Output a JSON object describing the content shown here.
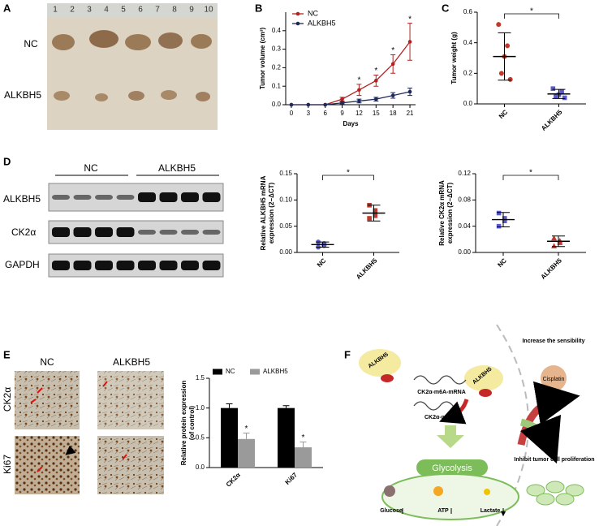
{
  "panel_labels": [
    "A",
    "B",
    "C",
    "D",
    "E",
    "F"
  ],
  "panel_a": {
    "ruler_labels": [
      "1",
      "2",
      "3",
      "4",
      "5",
      "6",
      "7",
      "8",
      "9",
      "10"
    ],
    "row_labels": [
      "NC",
      "ALKBH5"
    ]
  },
  "panel_d_blot": {
    "column_labels": [
      "NC",
      "ALKBH5"
    ],
    "row_labels": [
      "ALKBH5",
      "CK2α",
      "GAPDH"
    ]
  },
  "panel_e_images": {
    "column_labels": [
      "NC",
      "ALKBH5"
    ],
    "row_labels": [
      "CK2α",
      "Ki67"
    ]
  },
  "panel_f": {
    "enzyme": "ALKBH5",
    "enzyme_free": "ALKBH5",
    "methylated_mrna": "CK2α-m6A-mRNA",
    "mrna": "CK2α-mRNA",
    "pathway": "Glycolysis",
    "metabolites": [
      "Glucose",
      "ATP",
      "Lactate"
    ],
    "effect_1": "Increase the sensibility",
    "drug": "Cisplatin",
    "effect_2": "Inhibit tumor cell proliferation"
  },
  "chart_data": [
    {
      "type": "line",
      "xlabel": "Days",
      "ylabel": "Tumor volume (cm³)",
      "x": [
        0,
        3,
        6,
        9,
        12,
        15,
        18,
        21
      ],
      "xlim": [
        -1,
        22
      ],
      "xticks": [
        0,
        3,
        6,
        9,
        12,
        15,
        18,
        21
      ],
      "ylim": [
        0,
        0.5
      ],
      "yticks": [
        {
          "value": 0,
          "label": "0.0"
        },
        {
          "value": 0.1,
          "label": "0.1"
        },
        {
          "value": 0.2,
          "label": "0.2"
        },
        {
          "value": 0.3,
          "label": "0.3"
        },
        {
          "value": 0.4,
          "label": "0.4"
        }
      ],
      "legend": "upper left",
      "series": [
        {
          "name": "NC",
          "color": "#b22222",
          "values": [
            0,
            0,
            0,
            0.03,
            0.08,
            0.13,
            0.22,
            0.34
          ],
          "errors": [
            0,
            0,
            0,
            0.01,
            0.03,
            0.03,
            0.05,
            0.1
          ],
          "significance": [
            null,
            null,
            null,
            null,
            "*",
            "*",
            "*",
            "*"
          ]
        },
        {
          "name": "ALKBH5",
          "color": "#1f2a5a",
          "values": [
            0,
            0,
            0,
            0.01,
            0.02,
            0.03,
            0.05,
            0.07
          ],
          "errors": [
            0,
            0,
            0,
            0.005,
            0.01,
            0.01,
            0.015,
            0.02
          ]
        }
      ]
    },
    {
      "type": "dot",
      "ylabel": "Tumor weight (g)",
      "categories": [
        "NC",
        "ALKBH5"
      ],
      "ylim": [
        0,
        0.6
      ],
      "yticks": [
        {
          "value": 0,
          "label": "0.0"
        },
        {
          "value": 0.2,
          "label": "0.2"
        },
        {
          "value": 0.4,
          "label": "0.4"
        },
        {
          "value": 0.6,
          "label": "0.6"
        }
      ],
      "significance": "*",
      "groups": [
        {
          "color": "#c0392b",
          "marker": "circle",
          "values": [
            0.52,
            0.38,
            0.31,
            0.2,
            0.16
          ],
          "mean": 0.31,
          "sd": 0.155
        },
        {
          "color": "#5b5bc8",
          "marker": "square",
          "values": [
            0.1,
            0.08,
            0.06,
            0.05,
            0.04
          ],
          "mean": 0.065,
          "sd": 0.03
        }
      ]
    },
    {
      "type": "dot",
      "ylabel": [
        "Relative ALKBH5 mRNA",
        "expression (2−ΔCT)"
      ],
      "categories": [
        "NC",
        "ALKBH5"
      ],
      "ylim": [
        0,
        0.15
      ],
      "yticks": [
        {
          "value": 0,
          "label": "0.00"
        },
        {
          "value": 0.05,
          "label": "0.05"
        },
        {
          "value": 0.1,
          "label": "0.10"
        },
        {
          "value": 0.15,
          "label": "0.15"
        }
      ],
      "significance": "*",
      "groups": [
        {
          "color": "#5b5bc8",
          "marker": "circle",
          "values": [
            0.02,
            0.017,
            0.013,
            0.01
          ],
          "mean": 0.015,
          "sd": 0.005
        },
        {
          "color": "#c0392b",
          "marker": "square",
          "values": [
            0.09,
            0.08,
            0.07,
            0.065
          ],
          "mean": 0.075,
          "sd": 0.015
        }
      ]
    },
    {
      "type": "dot",
      "ylabel": [
        "Relative CK2α mRNA",
        "expression (2−ΔCT)"
      ],
      "categories": [
        "NC",
        "ALKBH5"
      ],
      "ylim": [
        0,
        0.12
      ],
      "yticks": [
        {
          "value": 0,
          "label": "0.00"
        },
        {
          "value": 0.04,
          "label": "0.04"
        },
        {
          "value": 0.08,
          "label": "0.08"
        },
        {
          "value": 0.12,
          "label": "0.12"
        }
      ],
      "significance": "*",
      "groups": [
        {
          "color": "#5b5bc8",
          "marker": "square",
          "values": [
            0.06,
            0.052,
            0.048,
            0.04
          ],
          "mean": 0.05,
          "sd": 0.011
        },
        {
          "color": "#c0392b",
          "marker": "triangle",
          "values": [
            0.022,
            0.018,
            0.015,
            0.01
          ],
          "mean": 0.017,
          "sd": 0.008
        }
      ]
    },
    {
      "type": "bar",
      "ylabel": [
        "Relative protein expression",
        "(of control)"
      ],
      "categories": [
        "CK2α",
        "Ki67"
      ],
      "ylim": [
        0,
        1.5
      ],
      "yticks": [
        {
          "value": 0,
          "label": "0.0"
        },
        {
          "value": 0.5,
          "label": "0.5"
        },
        {
          "value": 1,
          "label": "1.0"
        },
        {
          "value": 1.5,
          "label": "1.5"
        }
      ],
      "legend": "top",
      "series": [
        {
          "name": "NC",
          "color": "#000000",
          "values": [
            1.0,
            1.0
          ],
          "errors": [
            0.07,
            0.04
          ]
        },
        {
          "name": "ALKBH5",
          "color": "#9a9a9a",
          "values": [
            0.48,
            0.34
          ],
          "errors": [
            0.1,
            0.09
          ],
          "significance": [
            "*",
            "*"
          ]
        }
      ]
    }
  ]
}
